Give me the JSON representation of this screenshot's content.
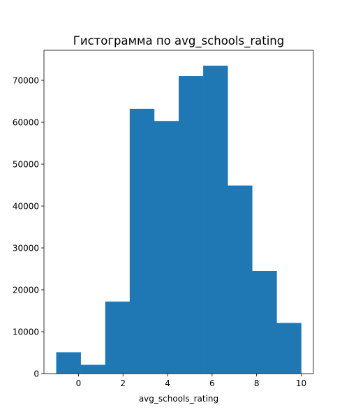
{
  "chart_data": {
    "type": "bar",
    "title": "Гистограмма по avg_schools_rating",
    "xlabel": "avg_schools_rating",
    "ylabel": "",
    "bar_color": "#1f77b4",
    "bin_edges": [
      -1.0,
      0.1,
      1.2,
      2.3,
      3.4,
      4.5,
      5.6,
      6.7,
      7.8,
      8.9,
      10.0
    ],
    "values": [
      5100,
      2100,
      17200,
      63200,
      60300,
      71000,
      73500,
      44900,
      24500,
      12100
    ],
    "xlim": [
      -1.55,
      10.55
    ],
    "ylim": [
      0,
      77175
    ],
    "x_ticks": [
      0,
      2,
      4,
      6,
      8,
      10
    ],
    "x_tick_labels": [
      "0",
      "2",
      "4",
      "6",
      "8",
      "10"
    ],
    "y_ticks": [
      0,
      10000,
      20000,
      30000,
      40000,
      50000,
      60000,
      70000
    ],
    "y_tick_labels": [
      "0",
      "10000",
      "20000",
      "30000",
      "40000",
      "50000",
      "60000",
      "70000"
    ],
    "grid": false,
    "legend": "none"
  }
}
